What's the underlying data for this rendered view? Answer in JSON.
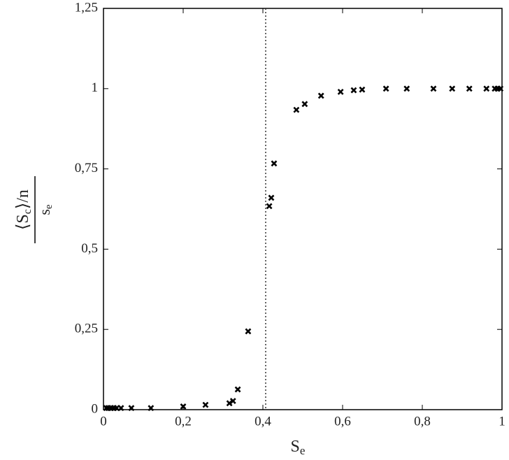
{
  "chart_data": {
    "type": "scatter",
    "xlabel": {
      "base": "S",
      "sub": "e"
    },
    "ylabel": {
      "numerator": {
        "open": "⟨",
        "base": "S",
        "sub": "c",
        "close": "⟩/n"
      },
      "denominator": {
        "base": "s",
        "sub": "e"
      }
    },
    "xlim": [
      0,
      1
    ],
    "ylim": [
      0,
      1.25
    ],
    "xticks": [
      0,
      {
        "value": 0.2,
        "label": "0,2"
      },
      {
        "value": 0.4,
        "label": "0,4"
      },
      {
        "value": 0.6,
        "label": "0,6"
      },
      {
        "value": 0.8,
        "label": "0,8"
      },
      1
    ],
    "yticks": [
      0,
      {
        "value": 0.25,
        "label": "0,25"
      },
      {
        "value": 0.5,
        "label": "0,5"
      },
      {
        "value": 0.75,
        "label": "0,75"
      },
      1,
      {
        "value": 1.25,
        "label": "1,25"
      }
    ],
    "vline": 0.407,
    "color": "#000000",
    "grid": false,
    "x": [
      0.007,
      0.012,
      0.019,
      0.026,
      0.033,
      0.044,
      0.07,
      0.119,
      0.2,
      0.256,
      0.316,
      0.325,
      0.337,
      0.363,
      0.416,
      0.421,
      0.428,
      0.484,
      0.505,
      0.546,
      0.595,
      0.628,
      0.649,
      0.709,
      0.761,
      0.828,
      0.875,
      0.918,
      0.961,
      0.982,
      0.989,
      0.996
    ],
    "values": [
      0.005,
      0.005,
      0.005,
      0.005,
      0.005,
      0.005,
      0.005,
      0.005,
      0.01,
      0.015,
      0.02,
      0.027,
      0.063,
      0.244,
      0.634,
      0.66,
      0.767,
      0.934,
      0.952,
      0.978,
      0.99,
      0.995,
      0.997,
      1,
      1,
      1,
      1,
      1,
      1,
      1,
      1,
      1
    ]
  }
}
